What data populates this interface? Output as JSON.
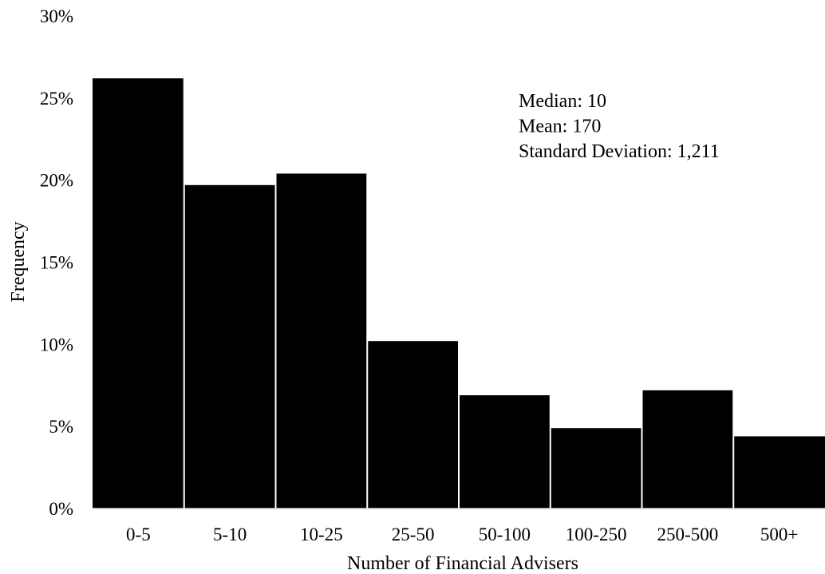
{
  "chart_data": {
    "type": "bar",
    "categories": [
      "0-5",
      "5-10",
      "10-25",
      "25-50",
      "50-100",
      "100-250",
      "250-500",
      "500+"
    ],
    "values": [
      26.2,
      19.7,
      20.4,
      10.2,
      6.9,
      4.9,
      7.2,
      4.4
    ],
    "value_unit": "%",
    "xlabel": "Number of Financial Advisers",
    "ylabel": "Frequency",
    "ylim": [
      0,
      30
    ],
    "yticks": [
      "0%",
      "5%",
      "10%",
      "15%",
      "20%",
      "25%",
      "30%"
    ],
    "grid": false,
    "legend": "none",
    "bar_color": "#000000",
    "annotations": [
      "Median: 10",
      "Mean: 170",
      "Standard Deviation: 1,211"
    ]
  }
}
